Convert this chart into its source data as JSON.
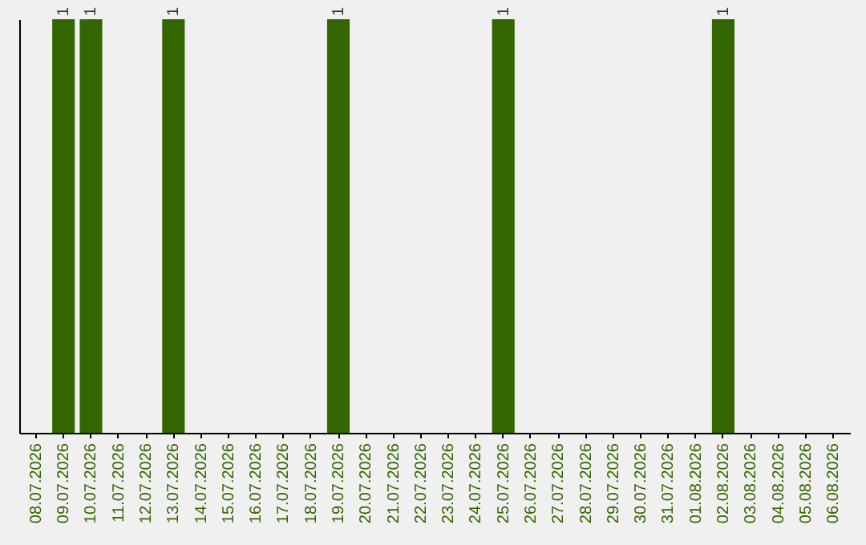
{
  "chart_data": {
    "type": "bar",
    "categories": [
      "08.07.2026",
      "09.07.2026",
      "10.07.2026",
      "11.07.2026",
      "12.07.2026",
      "13.07.2026",
      "14.07.2026",
      "15.07.2026",
      "16.07.2026",
      "17.07.2026",
      "18.07.2026",
      "19.07.2026",
      "20.07.2026",
      "21.07.2026",
      "22.07.2026",
      "23.07.2026",
      "24.07.2026",
      "25.07.2026",
      "26.07.2026",
      "27.07.2026",
      "28.07.2026",
      "29.07.2026",
      "30.07.2026",
      "31.07.2026",
      "01.08.2026",
      "02.08.2026",
      "03.08.2026",
      "04.08.2026",
      "05.08.2026",
      "06.08.2026"
    ],
    "values": [
      0,
      1,
      1,
      0,
      0,
      1,
      0,
      0,
      0,
      0,
      0,
      1,
      0,
      0,
      0,
      0,
      0,
      1,
      0,
      0,
      0,
      0,
      0,
      0,
      0,
      1,
      0,
      0,
      0,
      0
    ],
    "value_labels": [
      null,
      "1",
      "1",
      null,
      null,
      "1",
      null,
      null,
      null,
      null,
      null,
      "1",
      null,
      null,
      null,
      null,
      null,
      "1",
      null,
      null,
      null,
      null,
      null,
      null,
      null,
      "1",
      null,
      null,
      null,
      null
    ],
    "color": "#336600",
    "ylim": [
      0,
      1
    ],
    "tick_labels": "x"
  }
}
